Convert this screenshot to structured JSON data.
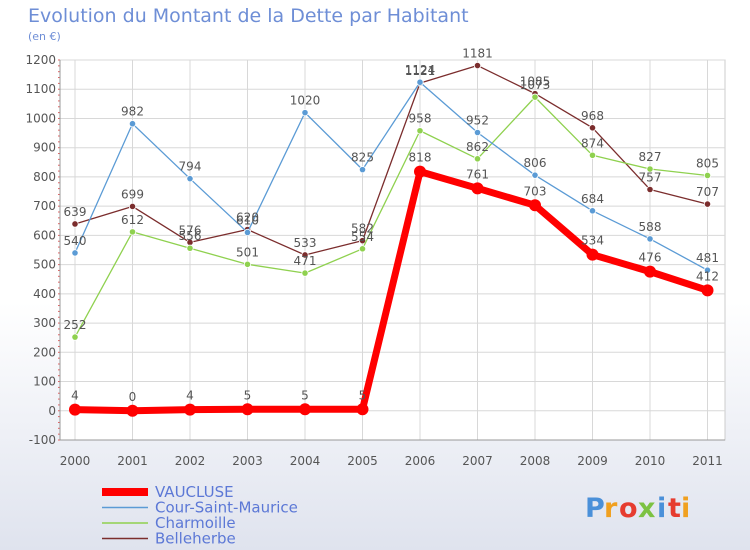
{
  "chart_data": {
    "type": "line",
    "title": "Evolution du Montant de la Dette par Habitant",
    "subtitle": "(en €)",
    "xlabel": "",
    "ylabel": "",
    "categories": [
      "2000",
      "2001",
      "2002",
      "2003",
      "2004",
      "2005",
      "2006",
      "2007",
      "2008",
      "2009",
      "2010",
      "2011"
    ],
    "yticks": [
      "-100",
      "0",
      "100",
      "200",
      "300",
      "400",
      "500",
      "600",
      "700",
      "800",
      "900",
      "1000",
      "1100",
      "1200"
    ],
    "ylim": [
      -100,
      1200
    ],
    "grid": true,
    "legend_position": "bottom-left",
    "series": [
      {
        "name": "VAUCLUSE",
        "color": "#ff0000",
        "values": [
          4,
          0,
          4,
          5,
          5,
          5,
          818,
          761,
          703,
          534,
          476,
          412
        ]
      },
      {
        "name": "Cour-Saint-Maurice",
        "color": "#5b9bd5",
        "values": [
          540,
          982,
          794,
          610,
          1020,
          825,
          1124,
          952,
          806,
          684,
          588,
          481
        ]
      },
      {
        "name": "Charmoille",
        "color": "#8fd14f",
        "values": [
          252,
          612,
          556,
          501,
          471,
          554,
          958,
          862,
          1073,
          874,
          827,
          805
        ]
      },
      {
        "name": "Belleherbe",
        "color": "#7b2d2d",
        "values": [
          639,
          699,
          576,
          620,
          533,
          582,
          1121,
          1181,
          1085,
          968,
          757,
          707
        ]
      }
    ]
  },
  "logo": {
    "text": "Proxiti",
    "colors": [
      "#4a90d9",
      "#f0a020",
      "#e63c2f",
      "#7cc242",
      "#4a90d9",
      "#e63c2f",
      "#f0a020"
    ]
  }
}
